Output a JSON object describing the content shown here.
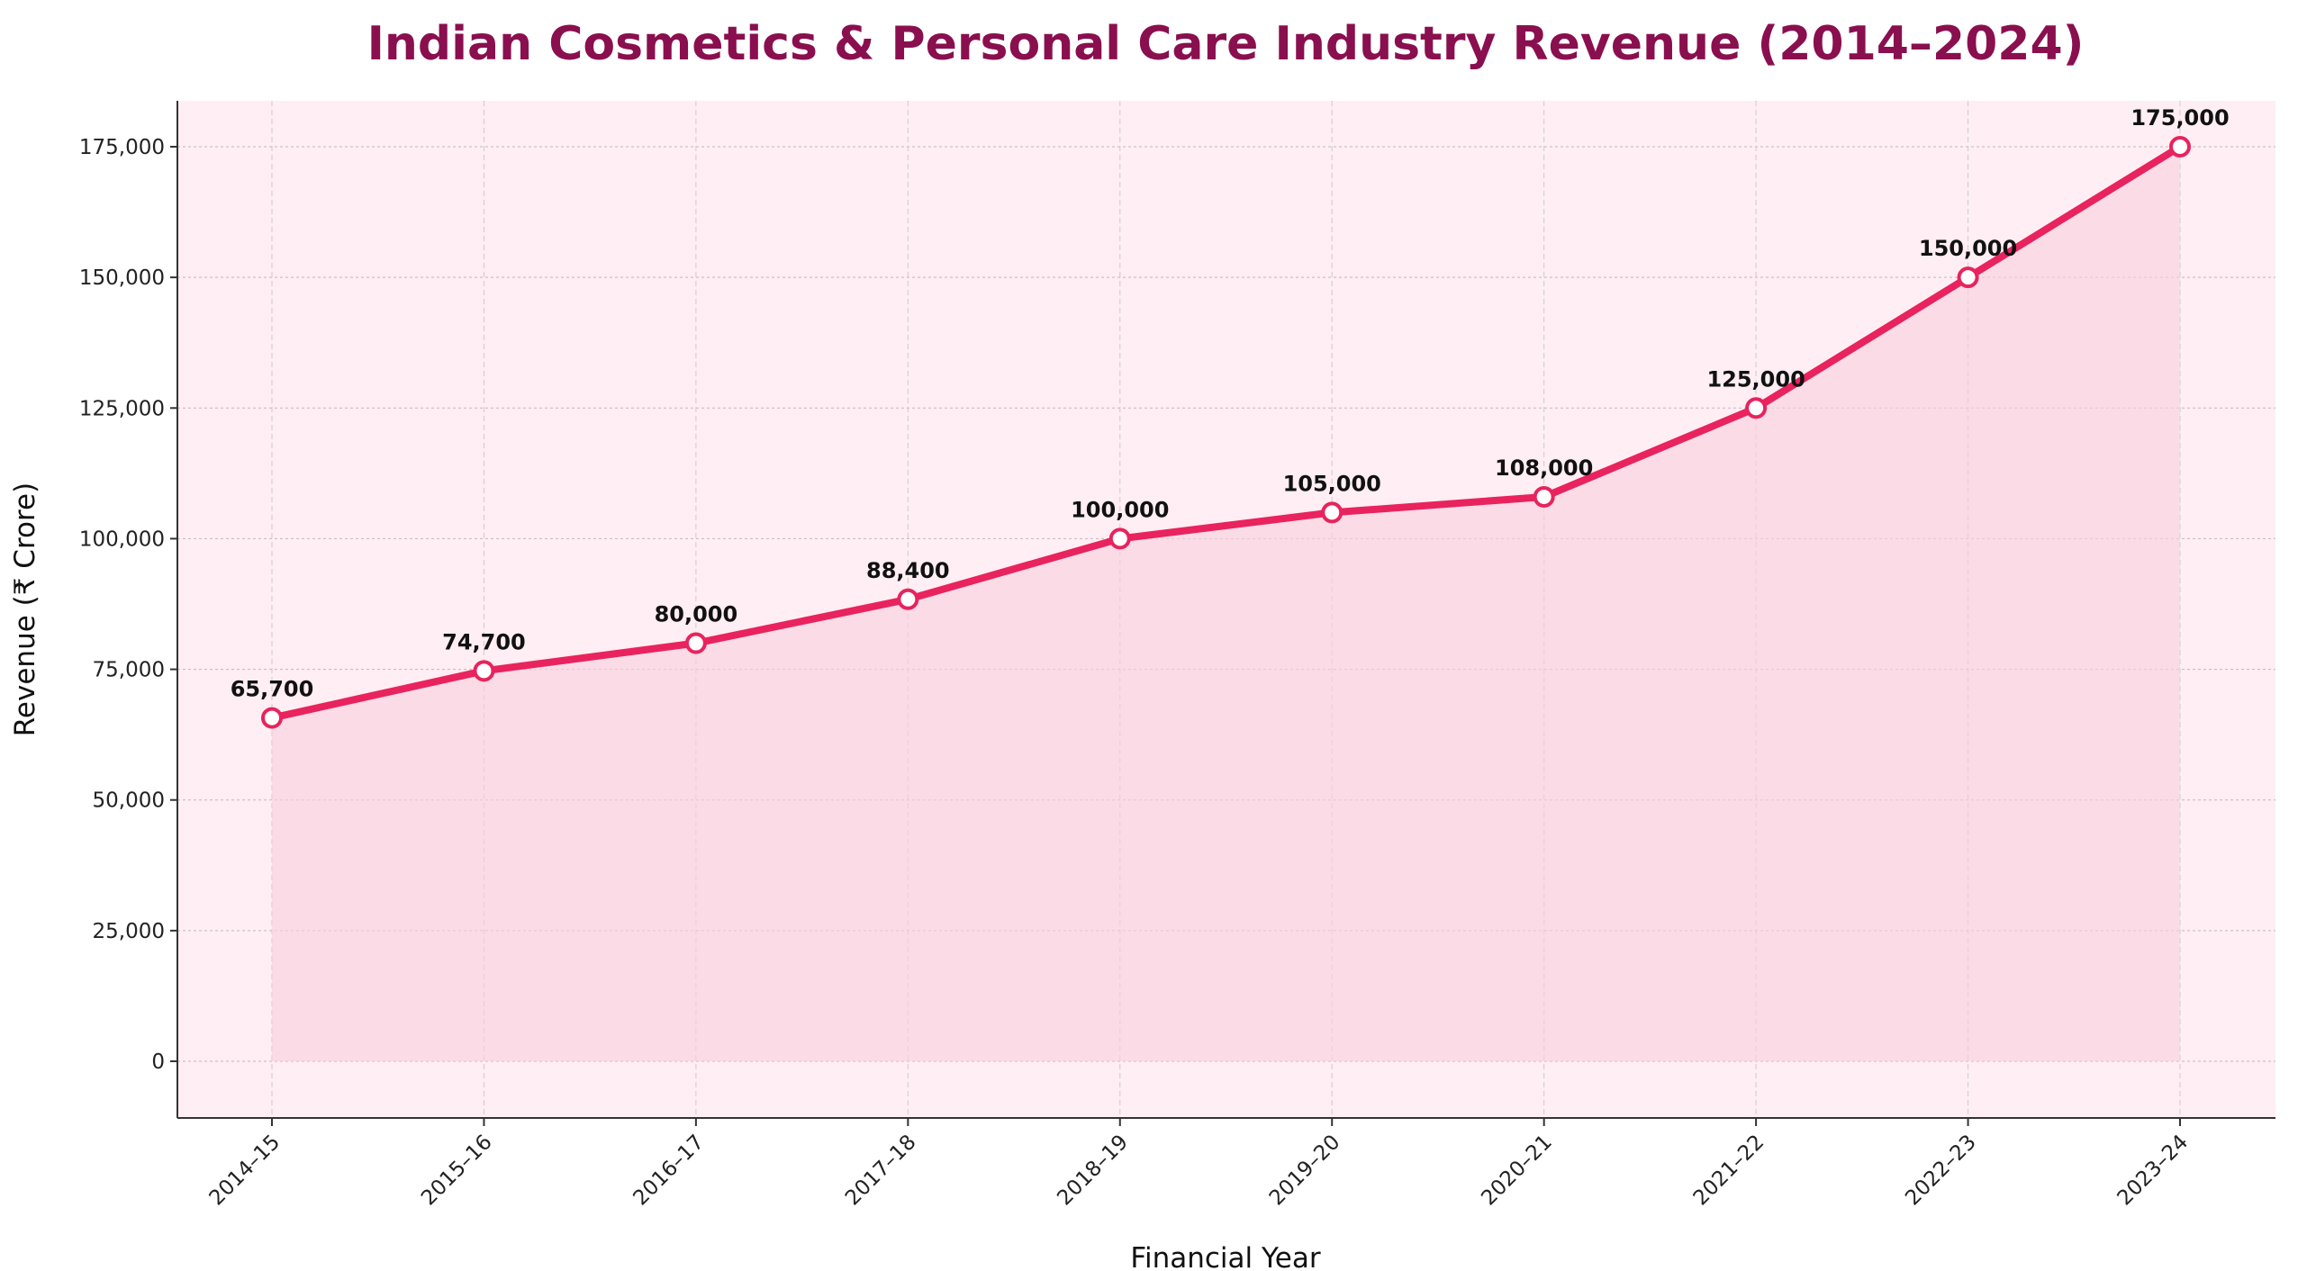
{
  "chart_data": {
    "type": "line",
    "title": "Indian Cosmetics & Personal Care Industry Revenue (2014–2024)",
    "xlabel": "Financial Year",
    "ylabel": "Revenue (₹ Crore)",
    "categories": [
      "2014–15",
      "2015–16",
      "2016–17",
      "2017–18",
      "2018–19",
      "2019–20",
      "2020–21",
      "2021–22",
      "2022–23",
      "2023–24"
    ],
    "values": [
      65700,
      74700,
      80000,
      88400,
      100000,
      105000,
      108000,
      125000,
      150000,
      175000
    ],
    "data_labels": [
      "65,700",
      "74,700",
      "80,000",
      "88,400",
      "100,000",
      "105,000",
      "108,000",
      "125,000",
      "150,000",
      "175,000"
    ],
    "yticks": [
      0,
      25000,
      50000,
      75000,
      100000,
      125000,
      150000,
      175000
    ],
    "ytick_labels": [
      "0",
      "25,000",
      "50,000",
      "75,000",
      "100,000",
      "125,000",
      "150,000",
      "175,000"
    ],
    "ylim": [
      -8500,
      183500
    ],
    "grid": true,
    "area_fill": true,
    "colors": {
      "line": "#e8235e",
      "fill": "#f9cfdd",
      "background": "#ffeef3",
      "title": "#8a0f4f"
    }
  }
}
